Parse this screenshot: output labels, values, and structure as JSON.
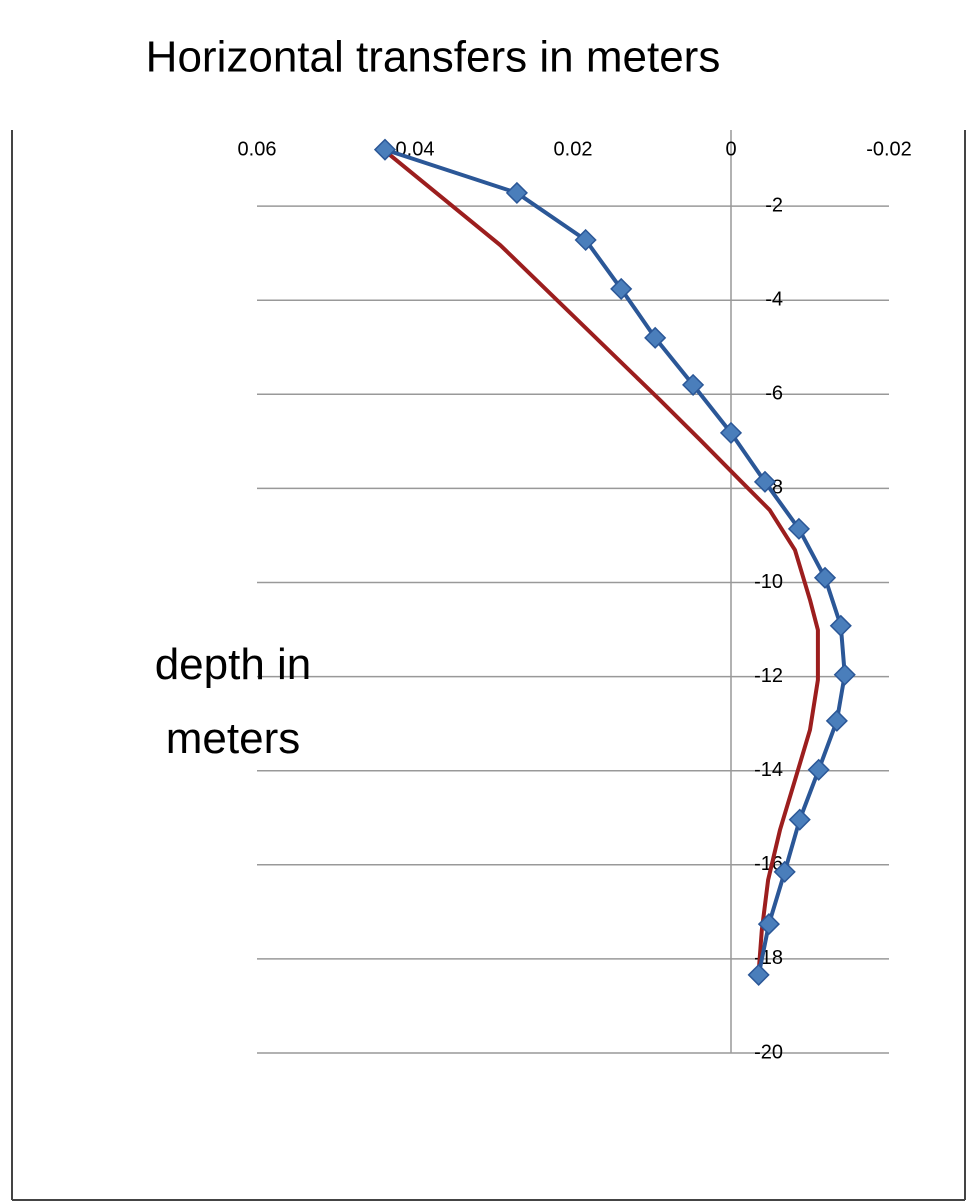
{
  "chart_data": {
    "type": "line",
    "title": "Horizontal transfers in meters",
    "ylabel": "depth in meters",
    "xlim": [
      0.06,
      -0.02
    ],
    "xticks": [
      0.06,
      0.04,
      0.02,
      0,
      -0.02
    ],
    "ylim": [
      0,
      -20
    ],
    "yticks": [
      -2,
      -4,
      -6,
      -8,
      -10,
      -12,
      -14,
      -16,
      -18,
      -20
    ],
    "grid": true,
    "series": [
      {
        "color": "#2b5797",
        "marker_color": "#4a7ebb",
        "markers": true,
        "x": [
          0.0438,
          0.0271,
          0.0184,
          0.0139,
          0.0096,
          0.0048,
          0,
          -0.0043,
          -0.0086,
          -0.0119,
          -0.0139,
          -0.0144,
          -0.0134,
          -0.0111,
          -0.0087,
          -0.0068,
          -0.0048,
          -0.0035
        ],
        "values": [
          -0.8,
          -1.72,
          -2.72,
          -3.76,
          -4.8,
          -5.8,
          -6.82,
          -7.86,
          -8.86,
          -9.9,
          -10.92,
          -11.96,
          -12.94,
          -13.98,
          -15.04,
          -16.15,
          -17.26,
          -18.34
        ]
      },
      {
        "color": "#9c1e1e",
        "markers": false,
        "x": [
          0.0432,
          0.0292,
          0.009,
          0.0039,
          -0.0011,
          -0.0049,
          -0.0081,
          -0.01,
          -0.011,
          -0.011,
          -0.01,
          -0.0081,
          -0.0062,
          -0.0047,
          -0.0039,
          -0.0035
        ],
        "values": [
          -0.91,
          -2.83,
          -6.12,
          -6.97,
          -7.82,
          -8.46,
          -9.31,
          -10.37,
          -11.01,
          -12.07,
          -13.13,
          -14.2,
          -15.26,
          -16.32,
          -17.39,
          -18.28
        ]
      }
    ]
  }
}
